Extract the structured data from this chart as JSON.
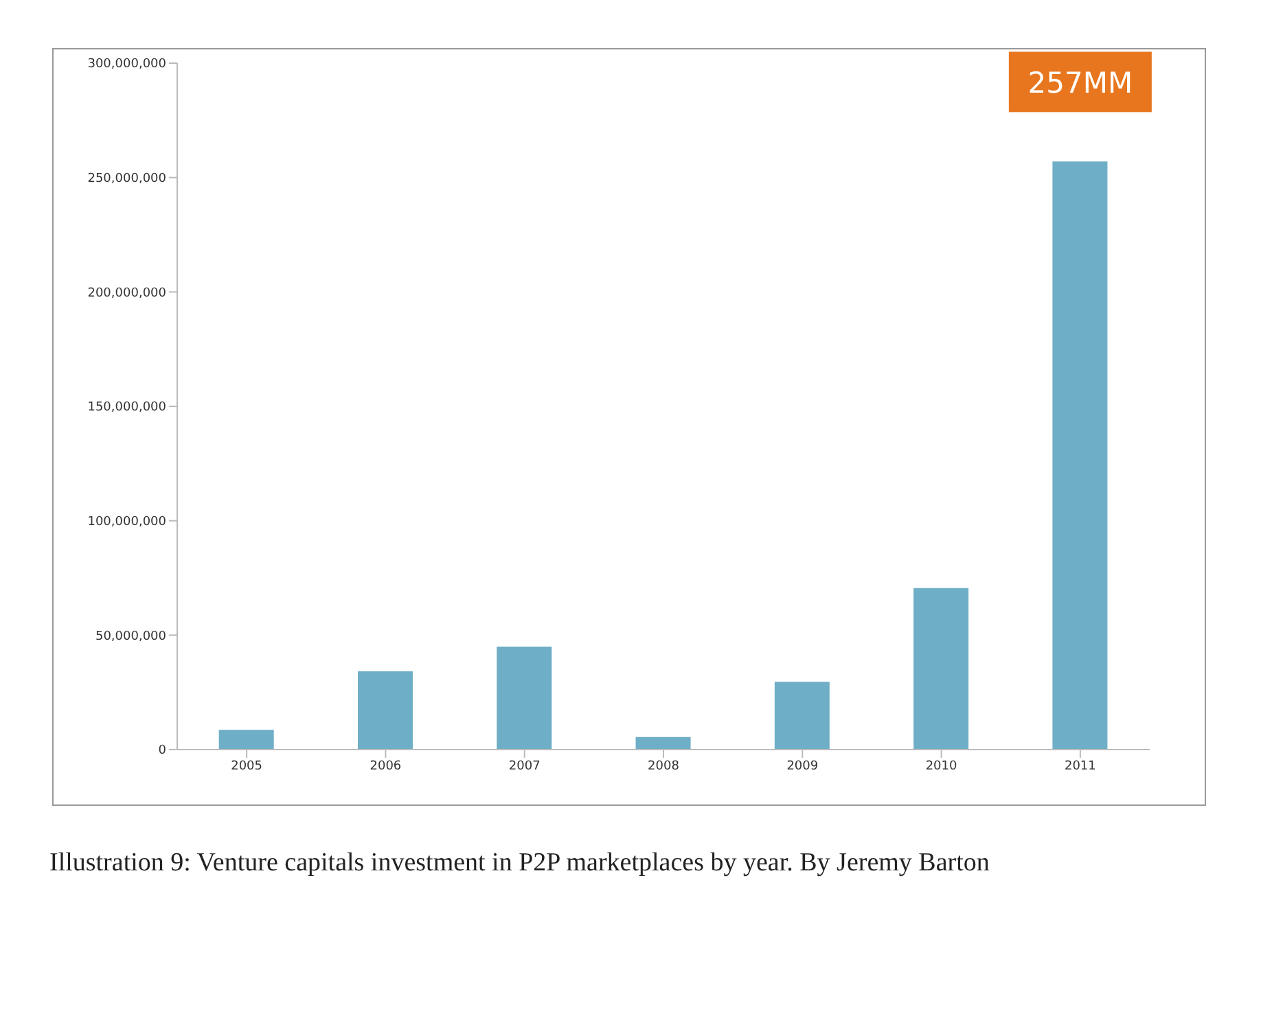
{
  "chart_data": {
    "type": "bar",
    "categories": [
      "2005",
      "2006",
      "2007",
      "2008",
      "2009",
      "2010",
      "2011"
    ],
    "values": [
      8600000,
      34200000,
      45000000,
      5500000,
      29600000,
      70600000,
      257000000
    ],
    "color": "#6eaec6",
    "ylim": [
      0,
      300000000
    ],
    "yticks": [
      {
        "value": 0,
        "label": "0"
      },
      {
        "value": 50000000,
        "label": "50,000,000"
      },
      {
        "value": 100000000,
        "label": "100,000,000"
      },
      {
        "value": 150000000,
        "label": "150,000,000"
      },
      {
        "value": 200000000,
        "label": "200,000,000"
      },
      {
        "value": 250000000,
        "label": "250,000,000"
      },
      {
        "value": 300000000,
        "label": "300,000,000"
      }
    ],
    "grid": false,
    "legend": false,
    "annotations": [
      {
        "text": "257MM",
        "x": "2011",
        "y": 257000000
      },
      "Illustration 9: Venture capitals investment in P2P marketplaces by year. By Jeremy Barton"
    ]
  }
}
